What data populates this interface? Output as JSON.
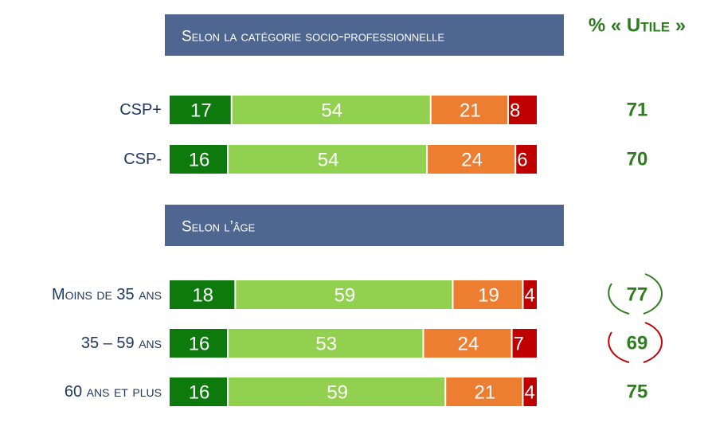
{
  "chart_data": {
    "type": "bar",
    "total_title": "% « Utile »",
    "total_color": "#2e7d1e",
    "sections": [
      {
        "title": "Selon la catégorie socio-professionnelle",
        "categories": [
          "CSP+",
          "CSP-"
        ],
        "series": [
          {
            "color": "#0e7a0e",
            "values": [
              17,
              16
            ]
          },
          {
            "color": "#92d050",
            "values": [
              54,
              54
            ]
          },
          {
            "color": "#ed7d31",
            "values": [
              21,
              24
            ]
          },
          {
            "color": "#c00000",
            "values": [
              8,
              6
            ]
          }
        ],
        "totals": [
          71,
          70
        ],
        "circle_colors": [
          null,
          null
        ]
      },
      {
        "title": "Selon l’âge",
        "categories": [
          "Moins de 35 ans",
          "35 – 59 ans",
          "60 ans et plus"
        ],
        "series": [
          {
            "color": "#0e7a0e",
            "values": [
              18,
              16,
              16
            ]
          },
          {
            "color": "#92d050",
            "values": [
              59,
              53,
              59
            ]
          },
          {
            "color": "#ed7d31",
            "values": [
              19,
              24,
              21
            ]
          },
          {
            "color": "#c00000",
            "values": [
              4,
              7,
              4
            ]
          }
        ],
        "totals": [
          77,
          69,
          75
        ],
        "circle_colors": [
          "#2e7d1e",
          "#c00000",
          null
        ]
      }
    ]
  }
}
